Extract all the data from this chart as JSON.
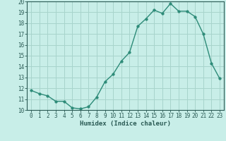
{
  "x": [
    0,
    1,
    2,
    3,
    4,
    5,
    6,
    7,
    8,
    9,
    10,
    11,
    12,
    13,
    14,
    15,
    16,
    17,
    18,
    19,
    20,
    21,
    22,
    23
  ],
  "y": [
    11.8,
    11.5,
    11.3,
    10.8,
    10.8,
    10.2,
    10.1,
    10.3,
    11.2,
    12.6,
    13.3,
    14.5,
    15.3,
    17.7,
    18.4,
    19.2,
    18.9,
    19.8,
    19.1,
    19.1,
    18.6,
    17.0,
    14.3,
    12.9
  ],
  "line_color": "#2d8b78",
  "marker": "o",
  "marker_size": 2.5,
  "bg_color": "#c8eee8",
  "grid_color": "#a8d4cc",
  "xlabel": "Humidex (Indice chaleur)",
  "xlim": [
    -0.5,
    23.5
  ],
  "ylim": [
    10,
    20
  ],
  "yticks": [
    10,
    11,
    12,
    13,
    14,
    15,
    16,
    17,
    18,
    19,
    20
  ],
  "xticks": [
    0,
    1,
    2,
    3,
    4,
    5,
    6,
    7,
    8,
    9,
    10,
    11,
    12,
    13,
    14,
    15,
    16,
    17,
    18,
    19,
    20,
    21,
    22,
    23
  ],
  "tick_color": "#2a5a54",
  "axis_color": "#2a5a54",
  "line_width": 1.0,
  "label_fontsize": 6.5,
  "tick_fontsize": 5.5
}
